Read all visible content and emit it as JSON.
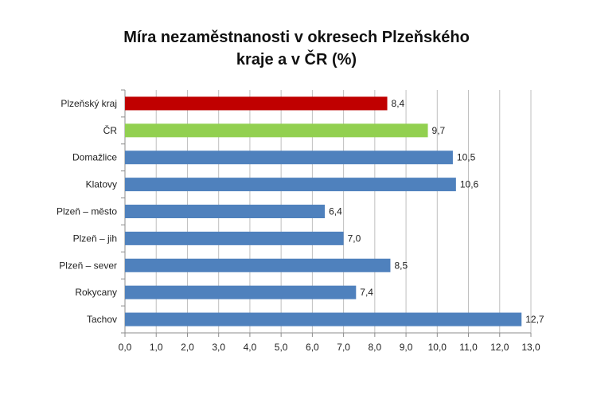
{
  "chart_data": {
    "type": "bar",
    "orientation": "horizontal",
    "title_line1": "Míra nezaměstnanosti v okresech Plzeňského",
    "title_line2": "kraje a v ČR (%)",
    "xlabel": "",
    "ylabel": "",
    "categories": [
      "Plzeňský kraj",
      "ČR",
      "Domažlice",
      "Klatovy",
      "Plzeň – město",
      "Plzeň – jih",
      "Plzeň – sever",
      "Rokycany",
      "Tachov"
    ],
    "values": [
      8.4,
      9.7,
      10.5,
      10.6,
      6.4,
      7.0,
      8.5,
      7.4,
      12.7
    ],
    "value_labels": [
      "8,4",
      "9,7",
      "10,5",
      "10,6",
      "6,4",
      "7,0",
      "8,5",
      "7,4",
      "12,7"
    ],
    "bar_colors": [
      "#C00000",
      "#92D050",
      "#4F81BD",
      "#4F81BD",
      "#4F81BD",
      "#4F81BD",
      "#4F81BD",
      "#4F81BD",
      "#4F81BD"
    ],
    "xlim": [
      0,
      13
    ],
    "x_ticks": [
      0,
      1,
      2,
      3,
      4,
      5,
      6,
      7,
      8,
      9,
      10,
      11,
      12,
      13
    ],
    "x_tick_labels": [
      "0,0",
      "1,0",
      "2,0",
      "3,0",
      "4,0",
      "5,0",
      "6,0",
      "7,0",
      "8,0",
      "9,0",
      "10,0",
      "11,0",
      "12,0",
      "13,0"
    ],
    "grid": true,
    "legend": "none"
  }
}
